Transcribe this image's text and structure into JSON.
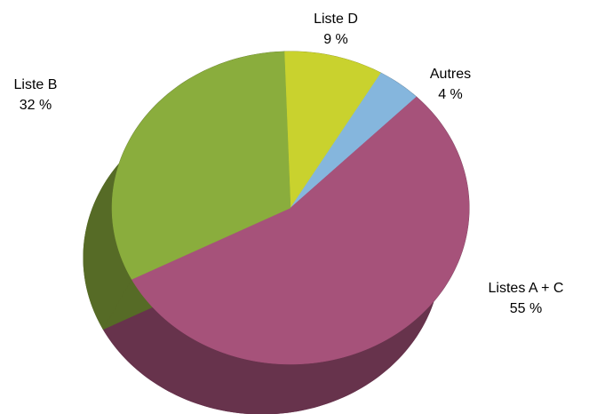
{
  "chart_data": {
    "type": "pie",
    "categories": [
      "Liste D",
      "Autres",
      "Listes A + C",
      "Liste B"
    ],
    "values": [
      9,
      4,
      55,
      32
    ],
    "value_labels": [
      "9 %",
      "4 %",
      "55 %",
      "32 %"
    ],
    "colors": [
      "#c9d22e",
      "#85b6dd",
      "#a6527a",
      "#8aad3d"
    ]
  }
}
